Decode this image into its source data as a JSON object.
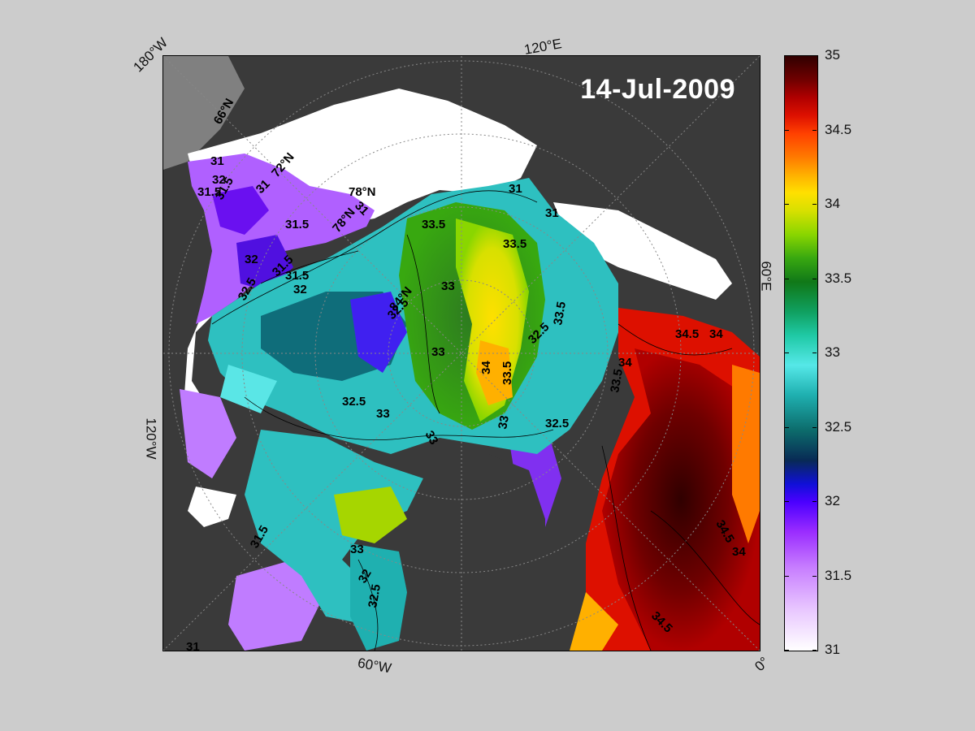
{
  "map": {
    "date": "14-Jul-2009",
    "longitude_labels": [
      "180°W",
      "120°E",
      "60°E",
      "0°",
      "60°W",
      "120°W"
    ],
    "latitude_labels": [
      "66°N",
      "72°N",
      "78°N",
      "84°N"
    ],
    "contour_labels": [
      "31",
      "32",
      "31.5",
      "31.5",
      "31",
      "31.5",
      "31.5",
      "78°N",
      "32",
      "31.5",
      "32",
      "31",
      "33.5",
      "33",
      "33.5",
      "32.5",
      "34",
      "33.5",
      "33",
      "32.5",
      "32.5",
      "33",
      "33",
      "34.5",
      "34",
      "34",
      "33.5",
      "32.5",
      "33",
      "34.5",
      "34",
      "34.5",
      "31.5",
      "32",
      "32.5",
      "33",
      "31",
      "31",
      "31",
      "32.5",
      "33.5"
    ]
  },
  "colorbar": {
    "ticks": [
      "35",
      "34.5",
      "34",
      "33.5",
      "33",
      "32.5",
      "32",
      "31.5",
      "31"
    ],
    "min": 31,
    "max": 35,
    "colors": {
      "low": "#ffffff",
      "purple": "#9a2cff",
      "blue": "#1010d8",
      "cyan": "#55e8e8",
      "green": "#107818",
      "yellow": "#ffe000",
      "orange": "#ff7a00",
      "red": "#dd1000",
      "high": "#300000"
    }
  }
}
